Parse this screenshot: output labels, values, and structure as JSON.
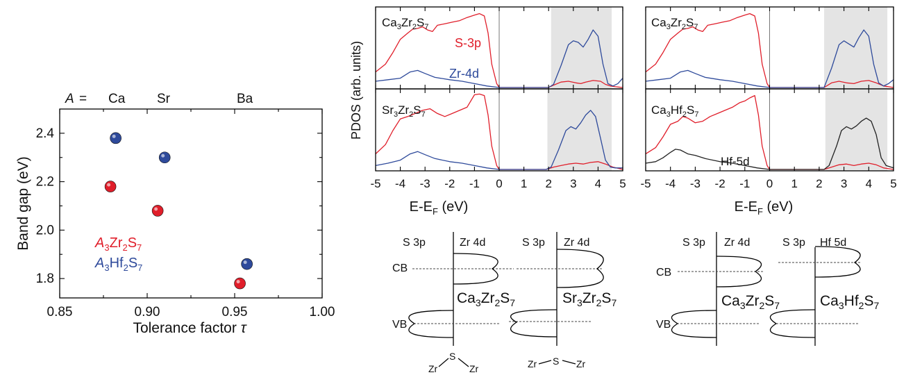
{
  "scatter": {
    "a_label": "A",
    "a_eq": "=",
    "a_labels": [
      "Ca",
      "Sr",
      "Ba"
    ],
    "ylabel": "Band gap (eV)",
    "xlabel_text": "Tolerance factor ",
    "xlabel_symbol": "τ",
    "legend_zr": {
      "a": "A",
      "s3": "3",
      "zr": "Zr",
      "s2": "2",
      "s": "S",
      "s7": "7"
    },
    "legend_hf": {
      "a": "A",
      "s3": "3",
      "hf": "Hf",
      "s2": "2",
      "s": "S",
      "s7": "7"
    }
  },
  "pdos": {
    "ylabel": "PDOS (arb. units)",
    "xlabel_main": "E-E",
    "xlabel_sub": "F",
    "xlabel_unit": " (eV)",
    "labels_s3p": "S-3p",
    "labels_zr4d": "Zr-4d",
    "labels_hf5d": "Hf-5d"
  },
  "diagrams": {
    "cb": "CB",
    "vb": "VB",
    "s3p": "S 3p",
    "zr4d": "Zr 4d",
    "hf5d": "Hf 5d",
    "zr": "Zr",
    "s": "S"
  },
  "chart_data": [
    {
      "type": "scatter",
      "xlabel": "Tolerance factor τ",
      "ylabel": "Band gap (eV)",
      "xlim": [
        0.85,
        1.0
      ],
      "ylim": [
        1.72,
        2.5
      ],
      "xticks": [
        "0.85",
        "0.90",
        "0.95",
        "1.00"
      ],
      "yticks": [
        "1.8",
        "2.0",
        "2.2",
        "2.4"
      ],
      "series": [
        {
          "name": "A3Zr2S7",
          "color": "#e01e2a",
          "points": [
            [
              0.879,
              2.18
            ],
            [
              0.906,
              2.08
            ],
            [
              0.953,
              1.78
            ]
          ]
        },
        {
          "name": "A3Hf2S7",
          "color": "#2e4a9b",
          "points": [
            [
              0.882,
              2.38
            ],
            [
              0.91,
              2.3
            ],
            [
              0.957,
              1.86
            ]
          ]
        }
      ]
    },
    {
      "type": "line",
      "panel": "Ca3Zr2S7",
      "title": "Ca3Zr2S7",
      "xlabel": "E-EF (eV)",
      "xlim": [
        -5,
        5
      ],
      "xticks": [
        "-5",
        "-4",
        "-3",
        "-2",
        "-1",
        "0",
        "1",
        "2",
        "3",
        "4",
        "5"
      ],
      "gap_shading": [
        2.1,
        4.55
      ],
      "series": [
        {
          "name": "S-3p",
          "color": "#e01e2a",
          "x": [
            -5,
            -4.6,
            -4.3,
            -4.0,
            -3.7,
            -3.5,
            -3.3,
            -3.1,
            -2.9,
            -2.7,
            -2.5,
            -2.2,
            -1.9,
            -1.6,
            -1.3,
            -1.0,
            -0.8,
            -0.6,
            -0.45,
            -0.3,
            -0.1,
            0,
            1,
            2,
            2.2,
            2.5,
            2.8,
            3.1,
            3.3,
            3.5,
            3.8,
            4.1,
            4.3,
            4.5,
            4.7,
            5
          ],
          "y": [
            0.2,
            0.3,
            0.45,
            0.62,
            0.7,
            0.75,
            0.76,
            0.78,
            0.74,
            0.72,
            0.8,
            0.82,
            0.84,
            0.86,
            0.9,
            0.93,
            0.95,
            0.92,
            0.7,
            0.3,
            0.05,
            0,
            0,
            0,
            0.03,
            0.07,
            0.08,
            0.06,
            0.05,
            0.07,
            0.09,
            0.08,
            0.04,
            0.02,
            0.01,
            0
          ]
        },
        {
          "name": "Zr-4d",
          "color": "#2e4a9b",
          "x": [
            -5,
            -4.5,
            -4.0,
            -3.6,
            -3.3,
            -3.0,
            -2.6,
            -2.0,
            -1.5,
            -1.0,
            -0.5,
            0,
            1,
            2,
            2.2,
            2.5,
            2.8,
            3.0,
            3.2,
            3.4,
            3.6,
            3.8,
            4.0,
            4.2,
            4.4,
            4.6,
            4.8,
            5
          ],
          "y": [
            0.08,
            0.1,
            0.12,
            0.2,
            0.22,
            0.18,
            0.13,
            0.1,
            0.08,
            0.05,
            0.02,
            0,
            0,
            0,
            0.04,
            0.28,
            0.55,
            0.6,
            0.58,
            0.52,
            0.62,
            0.74,
            0.66,
            0.3,
            0.05,
            0.02,
            0.05,
            0.12
          ]
        }
      ]
    },
    {
      "type": "line",
      "panel": "Sr3Zr2S7",
      "title": "Sr3Zr2S7",
      "xlim": [
        -5,
        5
      ],
      "gap_shading": [
        1.95,
        4.55
      ],
      "series": [
        {
          "name": "S-3p",
          "color": "#e01e2a",
          "x": [
            -5,
            -4.6,
            -4.3,
            -4.0,
            -3.7,
            -3.4,
            -3.1,
            -2.8,
            -2.5,
            -2.2,
            -1.9,
            -1.6,
            -1.3,
            -1.0,
            -0.8,
            -0.6,
            -0.45,
            -0.3,
            -0.1,
            0,
            1,
            1.9,
            2.2,
            2.5,
            2.8,
            3.1,
            3.4,
            3.7,
            4.0,
            4.3,
            4.6,
            5
          ],
          "y": [
            0.2,
            0.32,
            0.5,
            0.65,
            0.68,
            0.72,
            0.76,
            0.78,
            0.72,
            0.68,
            0.72,
            0.76,
            0.8,
            0.96,
            0.97,
            0.95,
            0.7,
            0.3,
            0.05,
            0,
            0,
            0,
            0.03,
            0.05,
            0.07,
            0.08,
            0.07,
            0.09,
            0.1,
            0.07,
            0.03,
            0
          ]
        },
        {
          "name": "Zr-4d",
          "color": "#2e4a9b",
          "x": [
            -5,
            -4.5,
            -4.0,
            -3.6,
            -3.3,
            -3.0,
            -2.6,
            -2.0,
            -1.5,
            -1.0,
            -0.5,
            0,
            1,
            1.9,
            2.1,
            2.4,
            2.7,
            2.9,
            3.1,
            3.3,
            3.5,
            3.7,
            3.9,
            4.1,
            4.3,
            4.5,
            4.7,
            5
          ],
          "y": [
            0.05,
            0.08,
            0.12,
            0.2,
            0.23,
            0.19,
            0.14,
            0.1,
            0.08,
            0.05,
            0.02,
            0,
            0,
            0,
            0.03,
            0.25,
            0.5,
            0.55,
            0.52,
            0.6,
            0.7,
            0.76,
            0.68,
            0.4,
            0.12,
            0.03,
            0.02,
            0.02
          ]
        }
      ]
    },
    {
      "type": "line",
      "panel": "Ca3Zr2S7 (right)",
      "title": "Ca3Zr2S7",
      "xlim": [
        -5,
        5
      ],
      "gap_shading": [
        2.2,
        4.75
      ],
      "series": [
        {
          "name": "S-3p",
          "color": "#e01e2a",
          "x": [
            -5,
            -4.6,
            -4.3,
            -4.0,
            -3.7,
            -3.5,
            -3.3,
            -3.1,
            -2.9,
            -2.7,
            -2.5,
            -2.2,
            -1.9,
            -1.6,
            -1.3,
            -1.0,
            -0.8,
            -0.6,
            -0.45,
            -0.3,
            -0.1,
            0,
            1,
            2.2,
            2.5,
            2.8,
            3.1,
            3.4,
            3.7,
            4.0,
            4.3,
            4.6,
            5
          ],
          "y": [
            0.2,
            0.3,
            0.45,
            0.62,
            0.7,
            0.75,
            0.76,
            0.78,
            0.74,
            0.72,
            0.8,
            0.82,
            0.84,
            0.86,
            0.9,
            0.93,
            0.95,
            0.92,
            0.7,
            0.3,
            0.05,
            0,
            0,
            0,
            0.06,
            0.08,
            0.06,
            0.05,
            0.08,
            0.09,
            0.06,
            0.02,
            0
          ]
        },
        {
          "name": "Zr-4d",
          "color": "#2e4a9b",
          "x": [
            -5,
            -4.5,
            -4.0,
            -3.6,
            -3.3,
            -3.0,
            -2.6,
            -2.0,
            -1.5,
            -1.0,
            -0.5,
            0,
            1,
            2.2,
            2.5,
            2.8,
            3.0,
            3.2,
            3.4,
            3.6,
            3.8,
            4.0,
            4.2,
            4.4,
            4.6,
            4.8,
            5
          ],
          "y": [
            0.08,
            0.1,
            0.12,
            0.2,
            0.22,
            0.18,
            0.13,
            0.1,
            0.08,
            0.05,
            0.02,
            0,
            0,
            0,
            0.25,
            0.55,
            0.6,
            0.56,
            0.52,
            0.64,
            0.74,
            0.66,
            0.3,
            0.06,
            0.02,
            0.05,
            0.1
          ]
        }
      ]
    },
    {
      "type": "line",
      "panel": "Ca3Hf2S7",
      "title": "Ca3Hf2S7",
      "xlim": [
        -5,
        5
      ],
      "gap_shading": [
        2.25,
        4.75
      ],
      "series": [
        {
          "name": "S-3p",
          "color": "#e01e2a",
          "x": [
            -5,
            -4.6,
            -4.3,
            -4.0,
            -3.7,
            -3.5,
            -3.3,
            -3.0,
            -2.7,
            -2.4,
            -2.1,
            -1.8,
            -1.5,
            -1.2,
            -1.0,
            -0.8,
            -0.6,
            -0.45,
            -0.3,
            -0.1,
            0,
            1,
            2.2,
            2.5,
            2.8,
            3.1,
            3.4,
            3.7,
            4.0,
            4.3,
            4.6,
            5
          ],
          "y": [
            0.2,
            0.28,
            0.42,
            0.58,
            0.62,
            0.68,
            0.66,
            0.6,
            0.62,
            0.68,
            0.72,
            0.76,
            0.8,
            0.86,
            0.88,
            0.92,
            0.95,
            0.7,
            0.3,
            0.05,
            0,
            0,
            0,
            0.03,
            0.06,
            0.07,
            0.05,
            0.07,
            0.08,
            0.06,
            0.02,
            0
          ]
        },
        {
          "name": "Hf-5d",
          "color": "#222222",
          "x": [
            -5,
            -4.6,
            -4.3,
            -4.0,
            -3.8,
            -3.6,
            -3.3,
            -3.0,
            -2.6,
            -2.0,
            -1.5,
            -1.0,
            -0.5,
            0,
            1,
            2.2,
            2.4,
            2.7,
            2.9,
            3.1,
            3.3,
            3.5,
            3.7,
            3.9,
            4.1,
            4.3,
            4.5,
            4.7,
            5
          ],
          "y": [
            0.08,
            0.1,
            0.15,
            0.22,
            0.26,
            0.25,
            0.2,
            0.18,
            0.14,
            0.1,
            0.08,
            0.05,
            0.02,
            0,
            0,
            0,
            0.05,
            0.3,
            0.5,
            0.55,
            0.52,
            0.56,
            0.62,
            0.66,
            0.62,
            0.45,
            0.15,
            0.05,
            0.02
          ]
        }
      ]
    }
  ]
}
